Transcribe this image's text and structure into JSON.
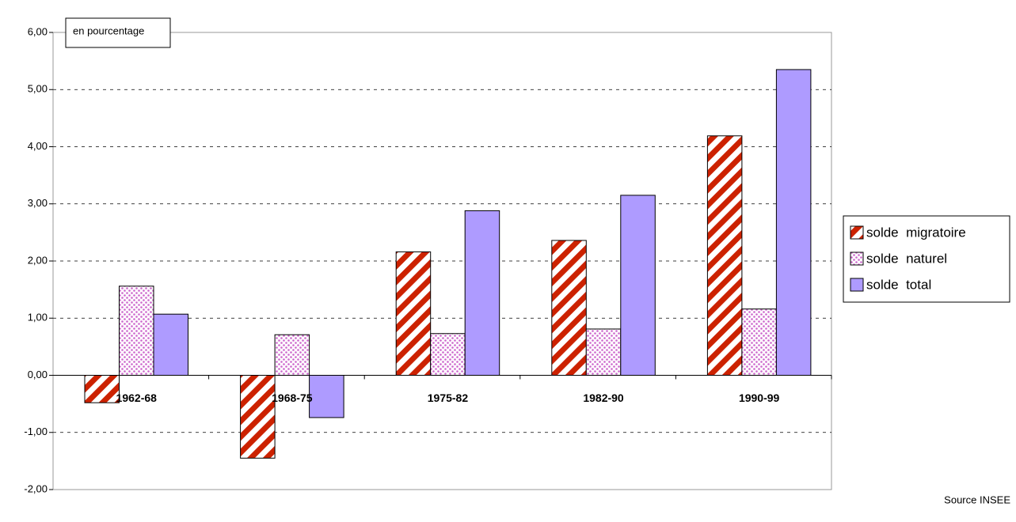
{
  "chart_data": {
    "type": "bar",
    "annotation": "en pourcentage",
    "source": "Source INSEE",
    "categories": [
      "1962-68",
      "1968-75",
      "1975-82",
      "1982-90",
      "1990-99"
    ],
    "series": [
      {
        "name": "solde  migratoire",
        "color": "#cc2200",
        "pattern": "stripes",
        "values": [
          -0.48,
          -1.45,
          2.16,
          2.36,
          4.19
        ]
      },
      {
        "name": "solde  naturel",
        "color": "#cc66cc",
        "pattern": "dots",
        "values": [
          1.56,
          0.71,
          0.73,
          0.81,
          1.16
        ]
      },
      {
        "name": "solde  total",
        "color": "#ae9bff",
        "pattern": "solid",
        "values": [
          1.07,
          -0.74,
          2.88,
          3.15,
          5.35
        ]
      }
    ],
    "ylim": [
      -2,
      6
    ],
    "yticks": [
      {
        "value": -2,
        "label": "-2,00"
      },
      {
        "value": -1,
        "label": "-1,00"
      },
      {
        "value": 0,
        "label": "0,00"
      },
      {
        "value": 1,
        "label": "1,00"
      },
      {
        "value": 2,
        "label": "2,00"
      },
      {
        "value": 3,
        "label": "3,00"
      },
      {
        "value": 4,
        "label": "4,00"
      },
      {
        "value": 5,
        "label": "5,00"
      },
      {
        "value": 6,
        "label": "6,00"
      }
    ],
    "grid": true
  }
}
